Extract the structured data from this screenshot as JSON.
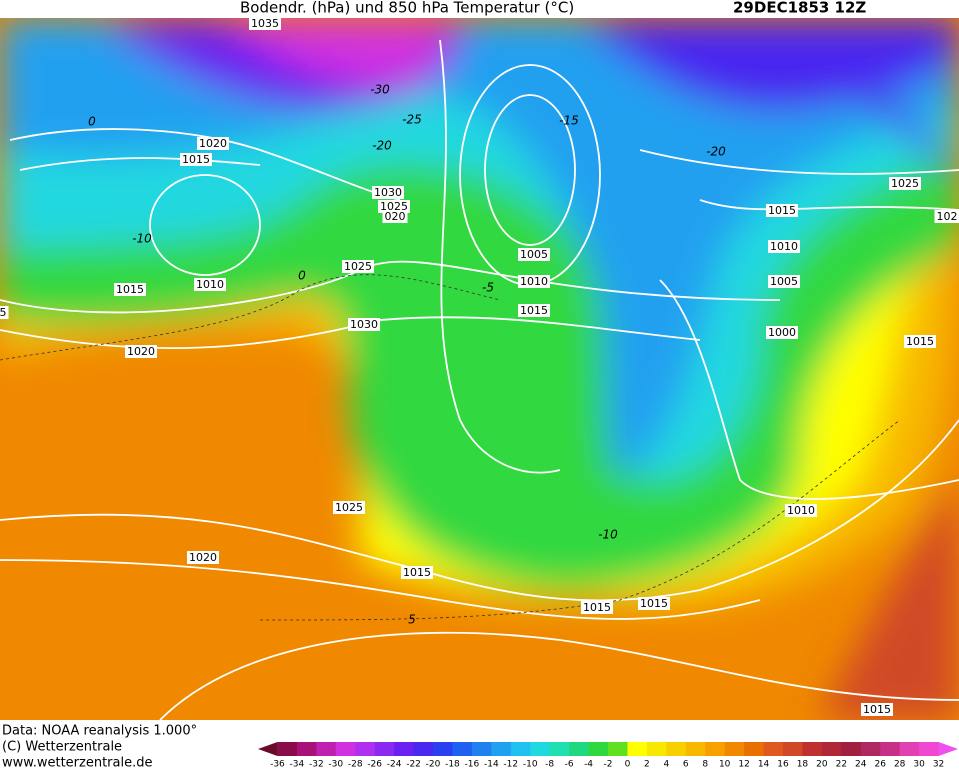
{
  "header": {
    "title": "Bodendr. (hPa) und 850 hPa Temperatur (°C)",
    "date": "29DEC1853 12Z"
  },
  "isobar_labels": [
    "1035",
    "1020",
    "1015",
    "1030",
    "1025",
    "020",
    "1010",
    "1015",
    "1020",
    "1025",
    "1030",
    "1005",
    "1010",
    "1015",
    "1025",
    "1020",
    "1015",
    "1015",
    "1015",
    "1010",
    "1000",
    "1005",
    "1010",
    "1015",
    "1025",
    "102",
    "1015",
    "1015",
    "5"
  ],
  "temperature_labels": [
    "-30",
    "-25",
    "-20",
    "-15",
    "-10",
    "0",
    "0",
    "-5",
    "-20",
    "-10",
    "5"
  ],
  "footer": [
    "Data: NOAA reanalysis 1.000°",
    "(C) Wetterzentrale",
    "www.wetterzentrale.de"
  ],
  "colorbar": {
    "labels": [
      -36,
      -34,
      -32,
      -30,
      -28,
      -26,
      -24,
      -22,
      -20,
      -18,
      -16,
      -14,
      -12,
      -10,
      -8,
      -6,
      -4,
      -2,
      0,
      2,
      4,
      6,
      8,
      10,
      12,
      14,
      16,
      18,
      20,
      22,
      24,
      26,
      28,
      30,
      32
    ],
    "colors": [
      "#6b0a2a",
      "#8a0a4a",
      "#a8107a",
      "#c020b0",
      "#d030e0",
      "#b030f0",
      "#8a2af0",
      "#6a20f0",
      "#4a28f0",
      "#2a40f0",
      "#2060f0",
      "#2080f0",
      "#20a0f0",
      "#20c0f0",
      "#20d8e0",
      "#20e0b0",
      "#20d880",
      "#30d840",
      "#60e020",
      "#ffff00",
      "#f8e800",
      "#f8d000",
      "#f8b800",
      "#f8a000",
      "#f08800",
      "#e87000",
      "#e05820",
      "#d04828",
      "#c03030",
      "#b02838",
      "#a02040",
      "#b02860",
      "#c83088",
      "#e040b0",
      "#f048d0",
      "#f050f0"
    ]
  }
}
